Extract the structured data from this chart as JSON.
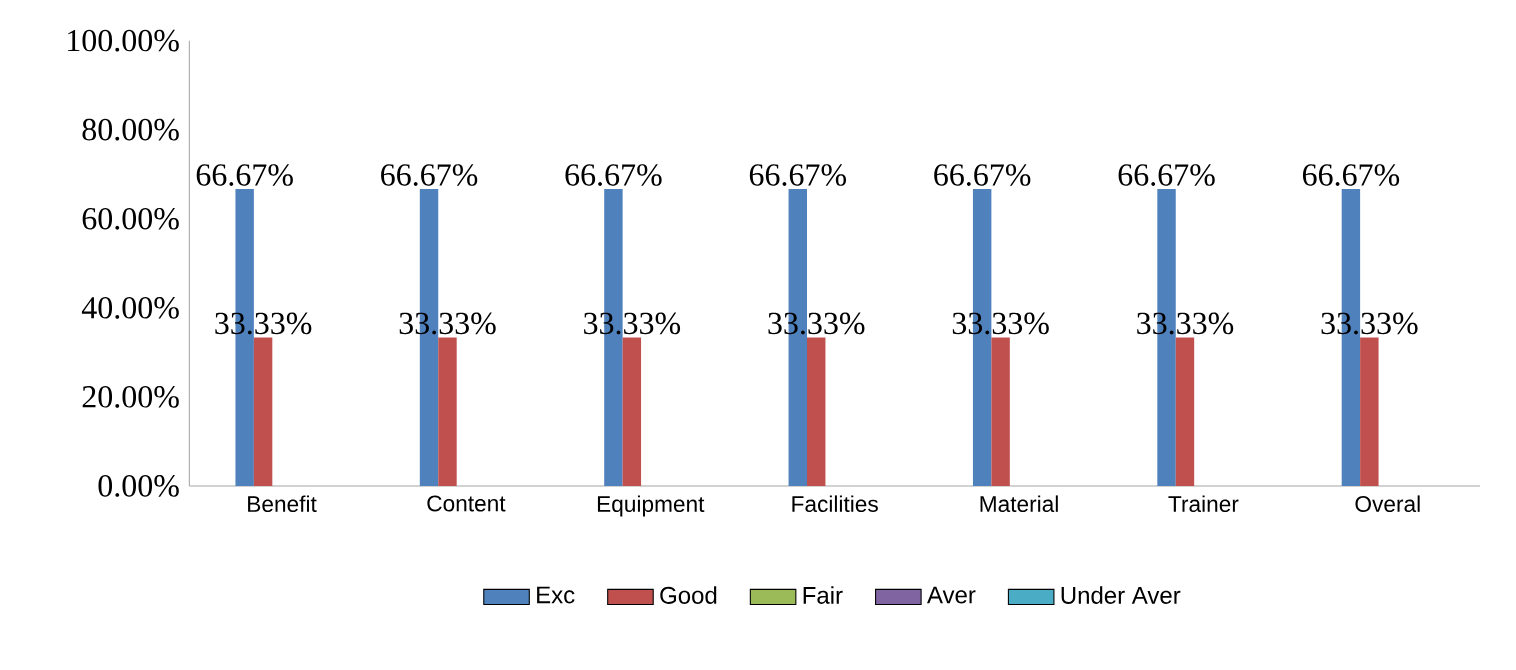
{
  "chart_data": {
    "type": "bar",
    "categories": [
      "Benefit",
      "Content",
      "Equipment",
      "Facilities",
      "Material",
      "Trainer",
      "Overal"
    ],
    "series": [
      {
        "name": "Exc",
        "color": "#4f81bd",
        "values": [
          66.67,
          66.67,
          66.67,
          66.67,
          66.67,
          66.67,
          66.67
        ],
        "value_labels": [
          "66.67%",
          "66.67%",
          "66.67%",
          "66.67%",
          "66.67%",
          "66.67%",
          "66.67%"
        ]
      },
      {
        "name": "Good",
        "color": "#c0504d",
        "values": [
          33.33,
          33.33,
          33.33,
          33.33,
          33.33,
          33.33,
          33.33
        ],
        "value_labels": [
          "33.33%",
          "33.33%",
          "33.33%",
          "33.33%",
          "33.33%",
          "33.33%",
          "33.33%"
        ]
      },
      {
        "name": "Fair",
        "color": "#9bbb59",
        "values": [
          0,
          0,
          0,
          0,
          0,
          0,
          0
        ]
      },
      {
        "name": "Aver",
        "color": "#8064a2",
        "values": [
          0,
          0,
          0,
          0,
          0,
          0,
          0
        ]
      },
      {
        "name": "Under Aver",
        "color": "#4bacc6",
        "values": [
          0,
          0,
          0,
          0,
          0,
          0,
          0
        ]
      }
    ],
    "ylim": [
      0,
      100
    ],
    "yticks": [
      {
        "value": 0,
        "label": "0.00%"
      },
      {
        "value": 20,
        "label": "20.00%"
      },
      {
        "value": 40,
        "label": "40.00%"
      },
      {
        "value": 60,
        "label": "60.00%"
      },
      {
        "value": 80,
        "label": "80.00%"
      },
      {
        "value": 100,
        "label": "100.00%"
      }
    ],
    "legend": "bottom"
  }
}
